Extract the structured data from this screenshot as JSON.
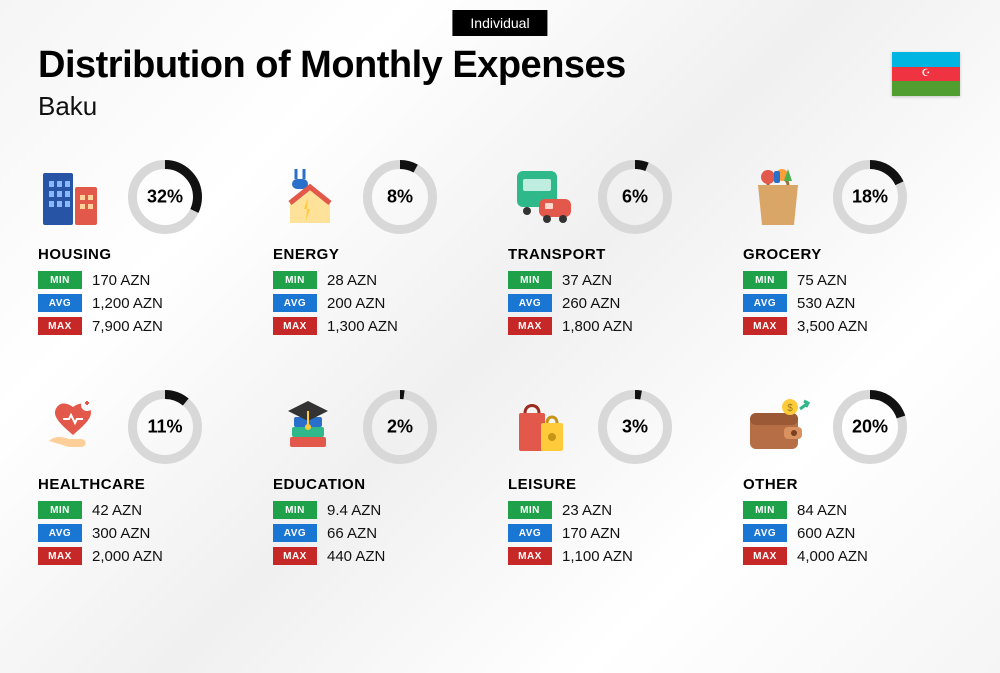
{
  "tag": "Individual",
  "title": "Distribution of Monthly Expenses",
  "city": "Baku",
  "currency": "AZN",
  "labels": {
    "min": "MIN",
    "avg": "AVG",
    "max": "MAX"
  },
  "colors": {
    "min_badge": "#1fa14a",
    "avg_badge": "#1976d2",
    "max_badge": "#c62828",
    "donut_ring": "#d8d8d8",
    "donut_arc": "#111111",
    "text": "#111111",
    "background": "#f5f5f5"
  },
  "flag": {
    "stripe1": "#00b5e2",
    "stripe2": "#ef3340",
    "stripe3": "#509e2f"
  },
  "donut": {
    "size": 74,
    "stroke_width": 9
  },
  "categories": [
    {
      "name": "HOUSING",
      "percent": 32,
      "min": "170 AZN",
      "avg": "1,200 AZN",
      "max": "7,900 AZN",
      "icon": "buildings"
    },
    {
      "name": "ENERGY",
      "percent": 8,
      "min": "28 AZN",
      "avg": "200 AZN",
      "max": "1,300 AZN",
      "icon": "energy-house"
    },
    {
      "name": "TRANSPORT",
      "percent": 6,
      "min": "37 AZN",
      "avg": "260 AZN",
      "max": "1,800 AZN",
      "icon": "bus-car"
    },
    {
      "name": "GROCERY",
      "percent": 18,
      "min": "75 AZN",
      "avg": "530 AZN",
      "max": "3,500 AZN",
      "icon": "grocery-bag"
    },
    {
      "name": "HEALTHCARE",
      "percent": 11,
      "min": "42 AZN",
      "avg": "300 AZN",
      "max": "2,000 AZN",
      "icon": "heart-hand"
    },
    {
      "name": "EDUCATION",
      "percent": 2,
      "min": "9.4 AZN",
      "avg": "66 AZN",
      "max": "440 AZN",
      "icon": "books-cap"
    },
    {
      "name": "LEISURE",
      "percent": 3,
      "min": "23 AZN",
      "avg": "170 AZN",
      "max": "1,100 AZN",
      "icon": "shopping-bags"
    },
    {
      "name": "OTHER",
      "percent": 20,
      "min": "84 AZN",
      "avg": "600 AZN",
      "max": "4,000 AZN",
      "icon": "wallet"
    }
  ]
}
